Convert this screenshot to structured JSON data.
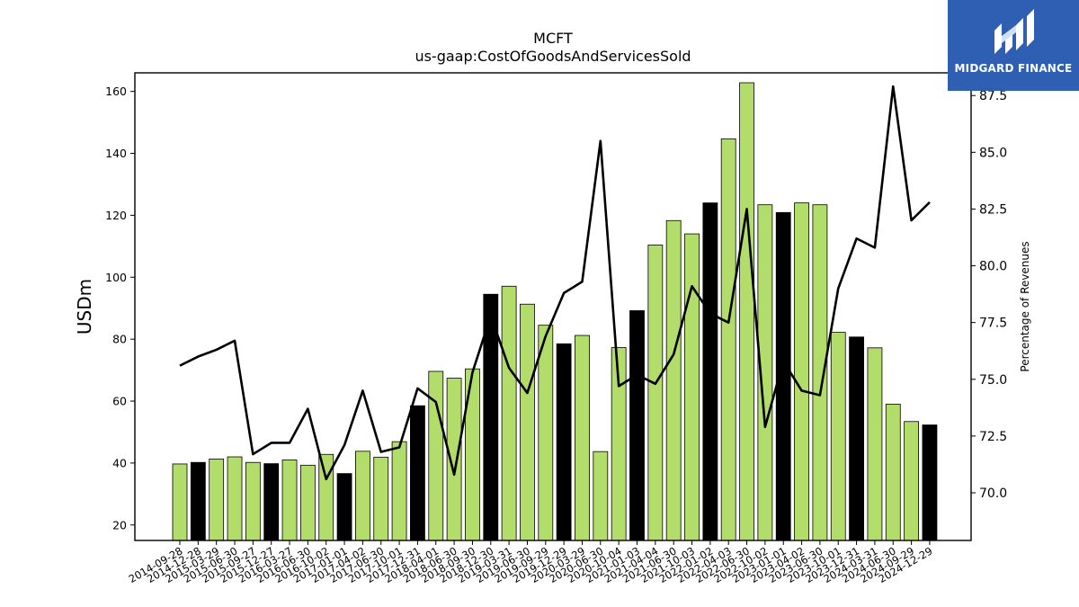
{
  "chart_data": {
    "type": "bar",
    "title": "MCFT",
    "subtitle": "us-gaap:CostOfGoodsAndServicesSold",
    "ylabel": "USDm",
    "y2label": "Percentage of Revenues",
    "ylim": [
      15,
      166
    ],
    "y2lim": [
      67.9,
      88.5
    ],
    "yticks": [
      20,
      40,
      60,
      80,
      100,
      120,
      140,
      160
    ],
    "y2ticks": [
      "70.0",
      "72.5",
      "75.0",
      "77.5",
      "80.0",
      "82.5",
      "85.0",
      "87.5"
    ],
    "categories": [
      "2014-09-28",
      "2014-12-28",
      "2015-03-29",
      "2015-06-30",
      "2015-09-27",
      "2015-12-27",
      "2016-03-27",
      "2016-06-30",
      "2016-10-02",
      "2017-01-01",
      "2017-04-02",
      "2017-06-30",
      "2017-10-01",
      "2017-12-31",
      "2018-04-01",
      "2018-06-30",
      "2018-09-30",
      "2018-12-30",
      "2019-03-31",
      "2019-06-30",
      "2019-09-29",
      "2019-12-29",
      "2020-03-29",
      "2020-06-30",
      "2020-10-04",
      "2021-01-03",
      "2021-04-04",
      "2021-06-30",
      "2021-10-03",
      "2022-01-02",
      "2022-04-03",
      "2022-06-30",
      "2022-10-02",
      "2023-01-01",
      "2023-04-02",
      "2023-06-30",
      "2023-10-01",
      "2023-12-31",
      "2024-03-31",
      "2024-06-30",
      "2024-09-29",
      "2024-12-29"
    ],
    "series": [
      {
        "type": "bar",
        "values": [
          39.7,
          40.2,
          41.3,
          42.0,
          40.2,
          39.8,
          41.0,
          39.3,
          42.8,
          36.6,
          43.8,
          41.9,
          46.9,
          58.5,
          69.6,
          67.4,
          70.4,
          94.5,
          97.1,
          91.3,
          84.5,
          78.5,
          81.2,
          43.7,
          77.3,
          89.2,
          110.4,
          118.3,
          114.0,
          124.0,
          144.7,
          162.8,
          123.4,
          120.9,
          124.0,
          123.4,
          82.2,
          80.7,
          77.2,
          59.0,
          53.4,
          52.3
        ],
        "highlight": [
          false,
          true,
          false,
          false,
          false,
          true,
          false,
          false,
          false,
          true,
          false,
          false,
          false,
          true,
          false,
          false,
          false,
          true,
          false,
          false,
          false,
          true,
          false,
          false,
          false,
          true,
          false,
          false,
          false,
          true,
          false,
          false,
          false,
          true,
          false,
          false,
          false,
          true,
          false,
          false,
          false,
          true
        ]
      },
      {
        "type": "line",
        "axis": "right",
        "values": [
          75.6,
          76.0,
          76.3,
          76.7,
          71.7,
          72.2,
          72.2,
          73.7,
          70.6,
          72.1,
          74.5,
          71.8,
          72.0,
          74.6,
          74.0,
          70.8,
          75.3,
          77.8,
          75.5,
          74.4,
          76.9,
          78.8,
          79.3,
          85.5,
          74.7,
          75.2,
          74.8,
          76.1,
          79.1,
          77.9,
          77.5,
          82.5,
          72.9,
          75.8,
          74.5,
          74.3,
          79.0,
          81.2,
          80.8,
          87.9,
          82.0,
          82.8
        ]
      }
    ],
    "colors": {
      "bar": "#b2dd6a",
      "bar_highlight": "#000000",
      "line": "#000000"
    }
  },
  "logo": {
    "text": "MIDGARD FINANCE"
  }
}
